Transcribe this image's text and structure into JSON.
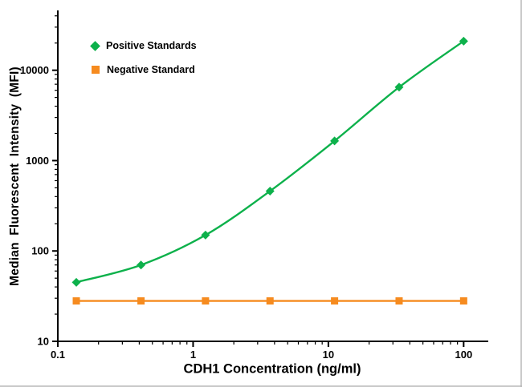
{
  "figure": {
    "background": "#ffffff",
    "axis_color": "#000000",
    "border_shadow_color": "#b5b5b5"
  },
  "chart_data": {
    "type": "line",
    "title": "",
    "xlabel": "CDH1 Concentration (ng/ml)",
    "ylabel": "Median Fluorescent Intensity (MFI)",
    "xscale": "log",
    "yscale": "log",
    "xlim": [
      0.1,
      150
    ],
    "ylim": [
      10,
      45000
    ],
    "grid": false,
    "legend_position": "upper-left",
    "x_ticks": [
      {
        "v": 0.1,
        "label": "0.1"
      },
      {
        "v": 1,
        "label": "1"
      },
      {
        "v": 10,
        "label": "10"
      },
      {
        "v": 100,
        "label": "100"
      }
    ],
    "y_ticks": [
      {
        "v": 10,
        "label": "10"
      },
      {
        "v": 100,
        "label": "100"
      },
      {
        "v": 1000,
        "label": "1000"
      },
      {
        "v": 10000,
        "label": "10000"
      }
    ],
    "series": [
      {
        "name": "Positive Standards",
        "color": "#0DB14B",
        "marker": "diamond",
        "smooth": true,
        "x": [
          0.137,
          0.412,
          1.235,
          3.704,
          11.111,
          33.333,
          100
        ],
        "y": [
          45,
          70,
          150,
          460,
          1650,
          6500,
          21000
        ]
      },
      {
        "name": "Negative Standard",
        "color": "#F68B1F",
        "marker": "square",
        "smooth": false,
        "x": [
          0.137,
          0.412,
          1.235,
          3.704,
          11.111,
          33.333,
          100
        ],
        "y": [
          28,
          28,
          28,
          28,
          28,
          28,
          28
        ]
      }
    ]
  }
}
